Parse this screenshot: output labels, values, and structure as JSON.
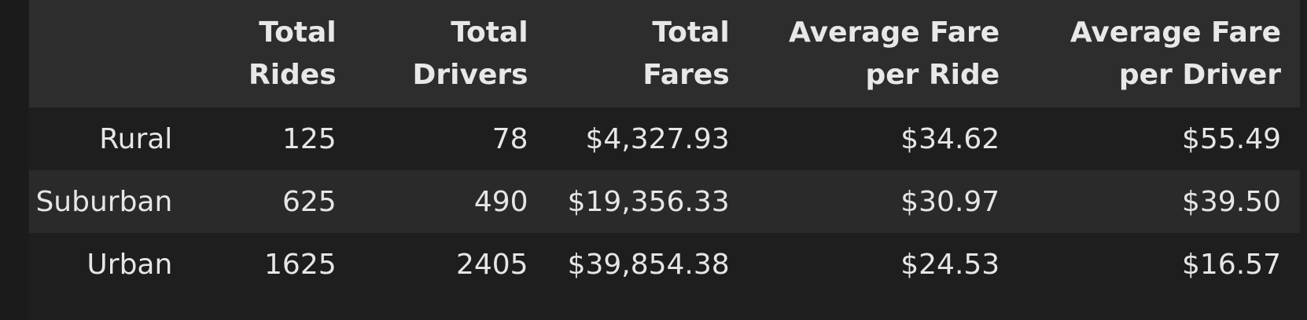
{
  "table": {
    "columns": [
      {
        "line1": "",
        "line2": ""
      },
      {
        "line1": "Total",
        "line2": "Rides"
      },
      {
        "line1": "Total",
        "line2": "Drivers"
      },
      {
        "line1": "Total",
        "line2": "Fares"
      },
      {
        "line1": "Average Fare",
        "line2": "per Ride"
      },
      {
        "line1": "Average Fare",
        "line2": "per Driver"
      }
    ],
    "rows": [
      {
        "label": "Rural",
        "total_rides": "125",
        "total_drivers": "78",
        "total_fares": "$4,327.93",
        "avg_fare_per_ride": "$34.62",
        "avg_fare_per_driver": "$55.49"
      },
      {
        "label": "Suburban",
        "total_rides": "625",
        "total_drivers": "490",
        "total_fares": "$19,356.33",
        "avg_fare_per_ride": "$30.97",
        "avg_fare_per_driver": "$39.50"
      },
      {
        "label": "Urban",
        "total_rides": "1625",
        "total_drivers": "2405",
        "total_fares": "$39,854.38",
        "avg_fare_per_ride": "$24.53",
        "avg_fare_per_driver": "$16.57"
      }
    ]
  },
  "colors": {
    "background": "#1e1e1e",
    "header_background": "#2d2d2d",
    "stripe_background": "#2a2a2a",
    "text": "#e6e6e6"
  }
}
